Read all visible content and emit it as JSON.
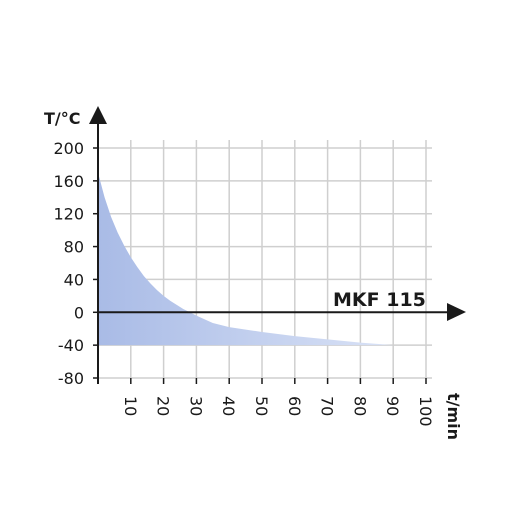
{
  "chart_data": {
    "type": "area",
    "ylabel": "T/°C",
    "xlabel": "t/min",
    "annotation": "MKF 115",
    "xlim": [
      0,
      100
    ],
    "ylim": [
      -80,
      200
    ],
    "x_ticks": [
      10,
      20,
      30,
      40,
      50,
      60,
      70,
      80,
      90,
      100
    ],
    "y_ticks": [
      200,
      160,
      120,
      80,
      40,
      0,
      -40,
      -80
    ],
    "grid": true,
    "area_color": "#b8c8ec",
    "baseline": -40,
    "series": [
      {
        "x": [
          0,
          2,
          4,
          6,
          8,
          10,
          12,
          14,
          16,
          18,
          20,
          22,
          24,
          26,
          28,
          30,
          35,
          40,
          50,
          60,
          70,
          80,
          90
        ],
        "values": [
          170,
          140,
          116,
          97,
          81,
          67,
          55,
          44,
          35,
          27,
          20,
          14,
          9,
          4,
          0,
          -4,
          -13,
          -18,
          -24,
          -29,
          -33,
          -37,
          -40
        ]
      }
    ]
  }
}
